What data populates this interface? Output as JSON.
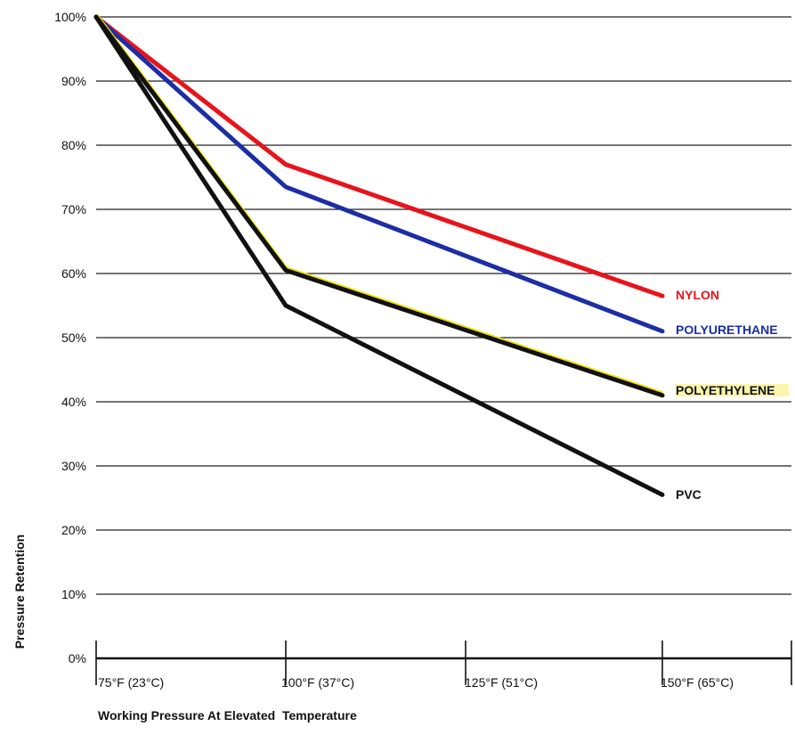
{
  "chart_data": {
    "type": "line",
    "xlabel": "Working Pressure At Elevated  Temperature",
    "ylabel": "Pressure Retention",
    "categories": [
      "75°F (23°C)",
      "100°F (37°C)",
      "125°F (51°C)",
      "150°F (65°C)"
    ],
    "x": [
      75,
      100,
      125,
      150
    ],
    "ylim": [
      0,
      100
    ],
    "yticks": [
      "0%",
      "10%",
      "20%",
      "30%",
      "40%",
      "50%",
      "60%",
      "70%",
      "80%",
      "90%",
      "100%"
    ],
    "grid": true,
    "series": [
      {
        "name": "NYLON",
        "color": "#e8141b",
        "x": [
          75,
          100,
          150
        ],
        "values": [
          100,
          77,
          56.5
        ]
      },
      {
        "name": "POLYURETHANE",
        "color": "#1c2ea6",
        "x": [
          75,
          100,
          150
        ],
        "values": [
          100,
          73.5,
          51
        ]
      },
      {
        "name": "POLYETHYLENE",
        "color": "#111111",
        "highlight": "#f2e600",
        "x": [
          75,
          100,
          150
        ],
        "values": [
          100,
          60.5,
          41
        ]
      },
      {
        "name": "PVC",
        "color": "#111111",
        "x": [
          75,
          100,
          150
        ],
        "values": [
          100,
          55,
          25.5
        ]
      }
    ]
  }
}
